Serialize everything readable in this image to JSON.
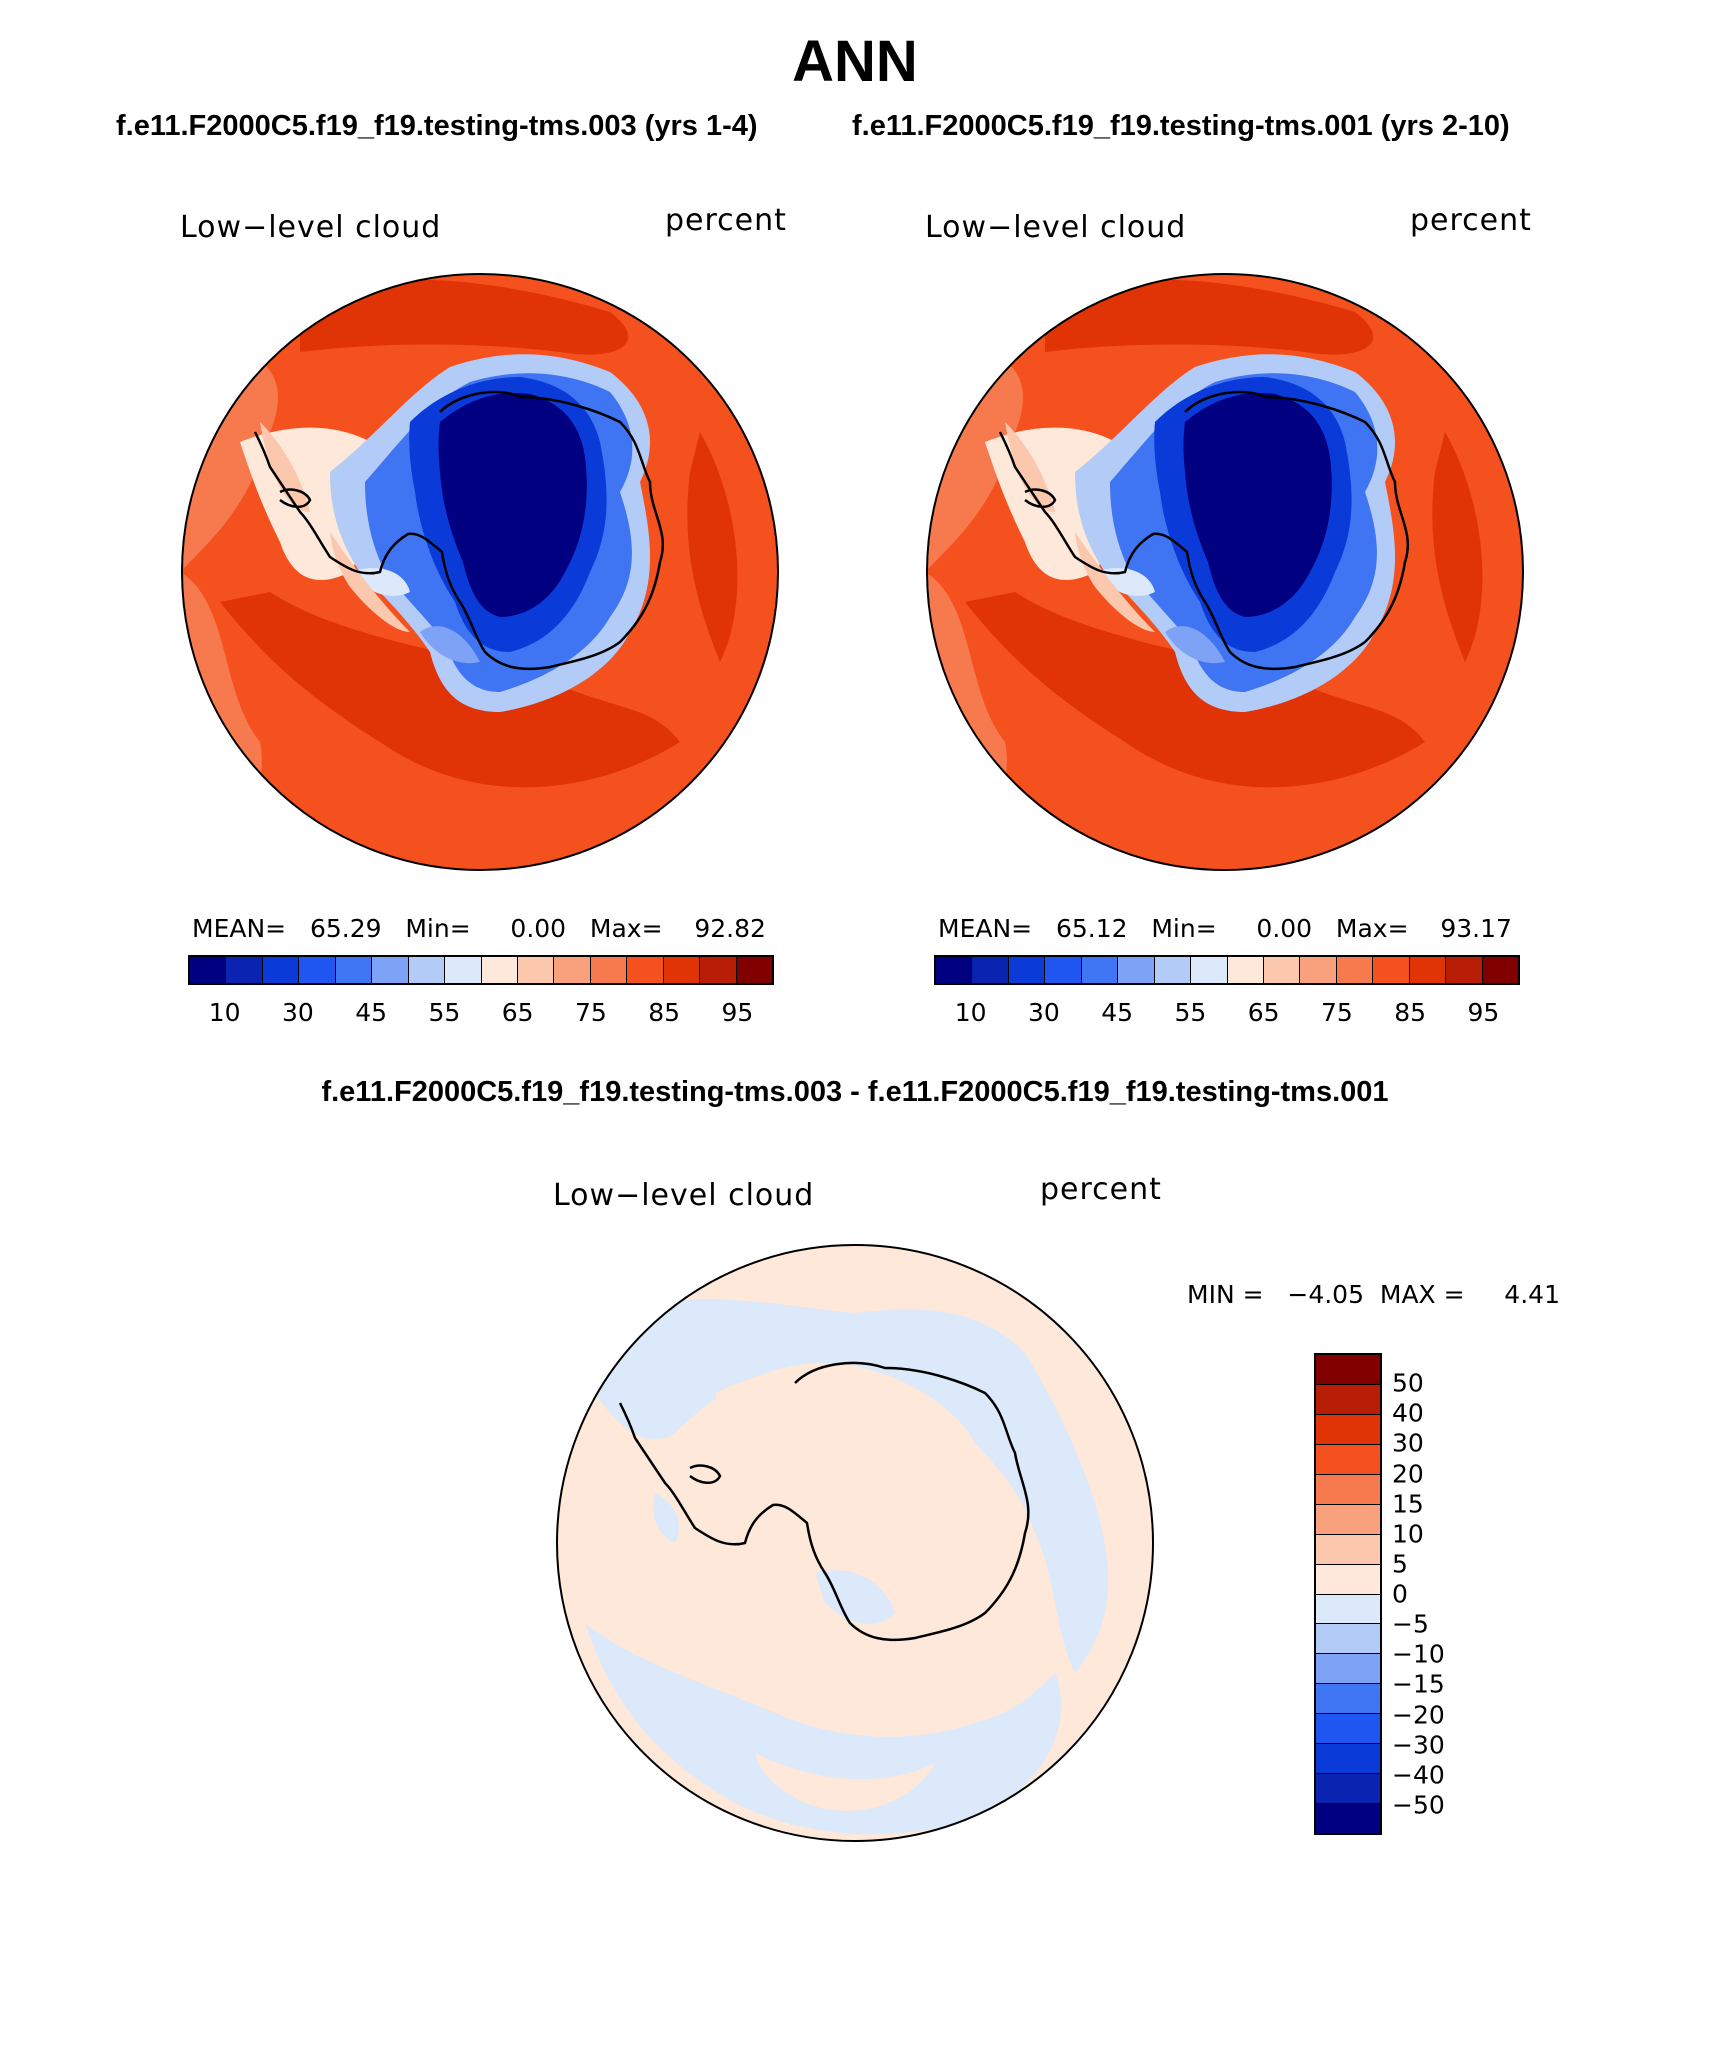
{
  "figure": {
    "title": "ANN",
    "case1_title": "f.e11.F2000C5.f19_f19.testing-tms.003 (yrs 1-4)",
    "case2_title": "f.e11.F2000C5.f19_f19.testing-tms.001 (yrs 2-10)",
    "diff_title": "f.e11.F2000C5.f19_f19.testing-tms.003 - f.e11.F2000C5.f19_f19.testing-tms.001"
  },
  "panels": [
    {
      "variable": "Low−level cloud",
      "units": "percent",
      "stats": "MEAN=   65.29   Min=     0.00   Max=    92.82"
    },
    {
      "variable": "Low−level cloud",
      "units": "percent",
      "stats": "MEAN=   65.12   Min=     0.00   Max=    93.17"
    },
    {
      "variable": "Low−level cloud",
      "units": "percent",
      "stats": "MIN =   −4.05  MAX =     4.41"
    }
  ],
  "colorbar_main": {
    "colors": [
      "#000080",
      "#0a23b0",
      "#0a3ad8",
      "#1f55f0",
      "#3f74f2",
      "#7ea2f5",
      "#b3ccf7",
      "#dbe9fa",
      "#fde8da",
      "#fbc7ad",
      "#f9a07d",
      "#f7794e",
      "#f4511f",
      "#e03407",
      "#b81d05",
      "#800000"
    ],
    "tick_labels": [
      "10",
      "30",
      "45",
      "55",
      "65",
      "75",
      "85",
      "95"
    ]
  },
  "colorbar_diff": {
    "colors": [
      "#800000",
      "#b81d05",
      "#e03407",
      "#f4511f",
      "#f7794e",
      "#f9a07d",
      "#fbc7ad",
      "#fde8da",
      "#dbe9fa",
      "#b3ccf7",
      "#7ea2f5",
      "#3f74f2",
      "#1f55f0",
      "#0a3ad8",
      "#0a23b0",
      "#000080"
    ],
    "tick_labels": [
      "50",
      "40",
      "30",
      "20",
      "15",
      "10",
      "5",
      "0",
      "−5",
      "−10",
      "−15",
      "−20",
      "−30",
      "−40",
      "−50"
    ]
  }
}
